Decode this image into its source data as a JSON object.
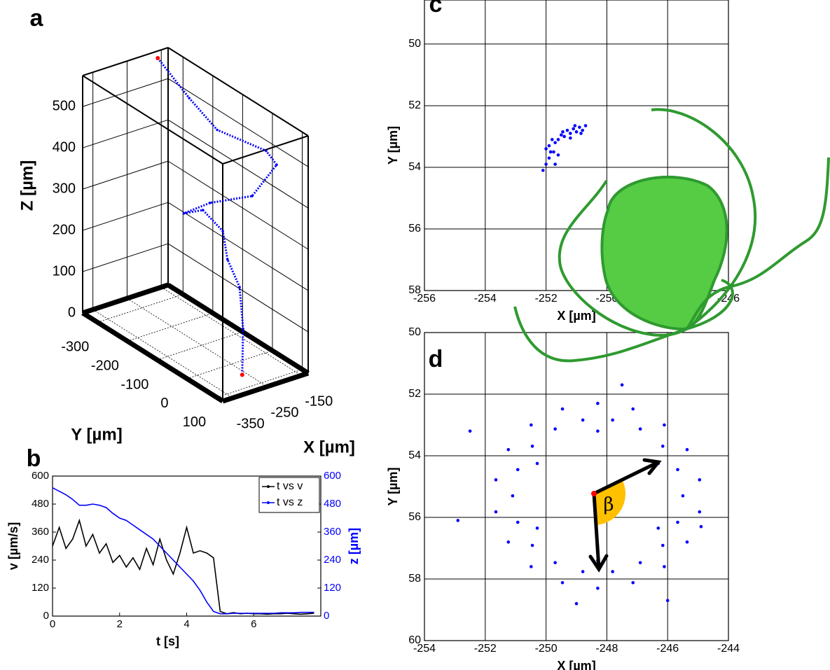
{
  "chart_data": [
    {
      "type": "line3d",
      "panel_label": "a",
      "x": [
        -182,
        -192,
        -200,
        -205,
        -210,
        -225,
        -235,
        -242,
        -248,
        -255,
        -258,
        -260,
        -262,
        -262
      ],
      "y": [
        -325,
        -208,
        -105,
        65,
        106,
        41,
        -89,
        -169,
        -98,
        -23,
        -4,
        39,
        53,
        50
      ],
      "z": [
        575,
        534,
        506,
        534,
        520,
        419,
        346,
        286,
        328,
        313,
        254,
        207,
        113,
        0
      ],
      "color": "#0000ff",
      "endpoint_color": "#ff0000",
      "xlim": [
        -380,
        -130
      ],
      "ylim": [
        -350,
        120
      ],
      "zlim": [
        0,
        575
      ],
      "xticks": [
        -350,
        -250,
        -150
      ],
      "yticks": [
        -300,
        -200,
        -100,
        0,
        100
      ],
      "zticks": [
        0,
        100,
        200,
        300,
        400,
        500
      ],
      "xlabel": "X [µm]",
      "ylabel": "Y [µm]",
      "zlabel": "Z [µm]",
      "grid": true
    },
    {
      "type": "line",
      "panel_label": "b",
      "x": [
        0,
        0.2,
        0.4,
        0.6,
        0.8,
        1,
        1.2,
        1.4,
        1.6,
        1.8,
        2,
        2.2,
        2.4,
        2.6,
        2.8,
        3,
        3.2,
        3.4,
        3.6,
        3.8,
        4,
        4.2,
        4.4,
        4.6,
        4.8,
        5,
        5.2,
        5.4,
        5.6,
        5.8,
        6,
        6.2,
        6.4,
        6.6,
        6.8,
        7,
        7.2,
        7.4,
        7.6,
        7.8
      ],
      "series": [
        {
          "name": "t vs v",
          "color": "#000000",
          "values": [
            300,
            380,
            290,
            330,
            410,
            300,
            350,
            270,
            310,
            230,
            260,
            210,
            250,
            200,
            290,
            220,
            330,
            240,
            180,
            270,
            380,
            270,
            280,
            270,
            250,
            20,
            10,
            15,
            10,
            12,
            10,
            10,
            8,
            10,
            10,
            12,
            10,
            8,
            10,
            12
          ]
        },
        {
          "name": "t vs z",
          "color": "#0000ff",
          "axis": "y2",
          "values": [
            550,
            535,
            520,
            500,
            475,
            475,
            480,
            475,
            465,
            440,
            420,
            410,
            390,
            370,
            350,
            330,
            300,
            270,
            240,
            210,
            180,
            150,
            110,
            60,
            20,
            10,
            10,
            12,
            12,
            12,
            12,
            12,
            12,
            12,
            14,
            14,
            14,
            16,
            16,
            16
          ]
        }
      ],
      "xlim": [
        0,
        8
      ],
      "xticks": [
        0,
        2,
        4,
        6
      ],
      "ylim": [
        0,
        600
      ],
      "yticks": [
        0,
        120,
        240,
        360,
        480,
        600
      ],
      "y2lim": [
        0,
        600
      ],
      "y2ticks": [
        0,
        120,
        240,
        360,
        480,
        600
      ],
      "xlabel": "t [s]",
      "ylabel": "v [µm/s]",
      "y2label": "z [µm]",
      "legend": "upper right",
      "grid": false
    },
    {
      "type": "scatter",
      "panel_label": "c",
      "color": "#0000ff",
      "x": [
        -250.7,
        -250.8,
        -250.9,
        -251.0,
        -251.1,
        -251.2,
        -251.3,
        -251.4,
        -251.5,
        -251.6,
        -251.7,
        -251.8,
        -251.9,
        -252.0,
        -251.85,
        -251.9,
        -252.0,
        -251.7,
        -252.1,
        -251.6,
        -251.2,
        -250.85,
        -251.05,
        -251.45,
        -251.75
      ],
      "y": [
        52.65,
        52.8,
        52.7,
        52.85,
        52.75,
        52.9,
        52.8,
        53.0,
        52.95,
        53.1,
        53.2,
        53.1,
        53.3,
        53.4,
        53.5,
        53.7,
        53.9,
        53.9,
        54.1,
        53.6,
        53.05,
        52.9,
        52.65,
        52.85,
        53.5
      ],
      "xlim": [
        -256,
        -246
      ],
      "ylim": [
        48.57,
        58
      ],
      "y_inverted": true,
      "xticks": [
        -256,
        -254,
        -252,
        -250,
        -248,
        -246
      ],
      "yticks": [
        50,
        52,
        54,
        56,
        58
      ],
      "xlabel": "X [µm]",
      "ylabel": "Y [µm]",
      "grid": true
    },
    {
      "type": "scatter",
      "panel_label": "d",
      "color": "#0000ff",
      "annotation": "β",
      "x": [
        -245.5,
        -245.67,
        -246.16,
        -246.9,
        -247.81,
        -248.79,
        -249.7,
        -250.45,
        -250.93,
        -251.1,
        -250.93,
        -250.45,
        -249.7,
        -248.79,
        -247.81,
        -246.9,
        -246.16,
        -245.67,
        -244.95,
        -245.36,
        -246.11,
        -247.14,
        -248.3,
        -249.46,
        -250.49,
        -251.24,
        -251.65,
        -251.65,
        -251.24,
        -250.49,
        -249.46,
        -248.3,
        -247.14,
        -246.11,
        -245.36,
        -244.95,
        -246.31,
        -248.3,
        -250.29,
        -250.29,
        -248.3,
        -246.31,
        -252.9,
        -246,
        -249,
        -252.5,
        -247.5,
        -244.9
      ],
      "y": [
        55.3,
        56.16,
        56.91,
        57.47,
        57.76,
        57.76,
        57.47,
        56.91,
        56.16,
        55.3,
        54.45,
        53.69,
        53.13,
        52.84,
        52.84,
        53.13,
        53.69,
        54.45,
        55.82,
        56.8,
        57.6,
        58.12,
        58.3,
        58.12,
        57.6,
        56.8,
        55.82,
        54.78,
        53.8,
        53.0,
        52.48,
        52.3,
        52.48,
        53.0,
        53.8,
        54.78,
        56.35,
        57.4,
        56.35,
        54.25,
        53.2,
        54.25,
        56.1,
        58.7,
        58.8,
        53.2,
        51.7,
        56.3
      ],
      "xlim": [
        -254,
        -244
      ],
      "ylim": [
        50,
        60
      ],
      "y_inverted": true,
      "xticks": [
        -254,
        -252,
        -250,
        -248,
        -246,
        -244
      ],
      "yticks": [
        50,
        52,
        54,
        56,
        58,
        60
      ],
      "xlabel": "X [µm]",
      "ylabel": "Y [µm]",
      "grid": true
    }
  ]
}
